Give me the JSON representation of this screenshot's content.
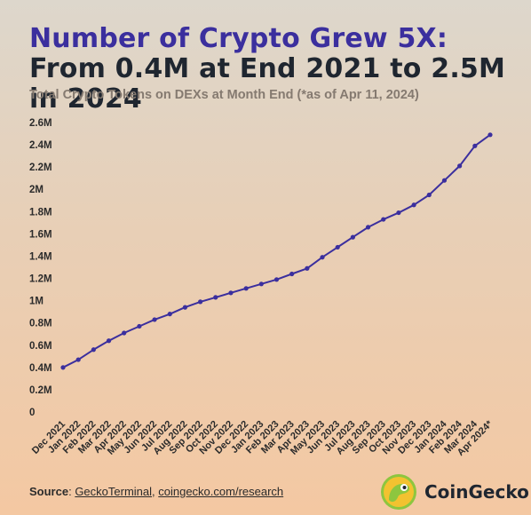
{
  "title_highlight": "Number of Crypto Grew 5X:",
  "title_rest": "From 0.4M at End 2021 to 2.5M in 2024",
  "subtitle": "Total Crypto Tokens on DEXs at Month End (*as of Apr 11, 2024)",
  "source": {
    "label": "Source",
    "link1": "GeckoTerminal",
    "separator": ", ",
    "link2": "coingecko.com/research"
  },
  "brand": {
    "name": "CoinGecko",
    "icon": "gecko-logo-icon"
  },
  "colors": {
    "line": "#3b2f9e",
    "title_highlight": "#3b2f9e",
    "text": "#1f2630",
    "subtitle": "#857a70"
  },
  "chart_data": {
    "type": "line",
    "title": "Number of Crypto Grew 5X: From 0.4M at End 2021 to 2.5M in 2024",
    "subtitle": "Total Crypto Tokens on DEXs at Month End (*as of Apr 11, 2024)",
    "xlabel": "",
    "ylabel": "",
    "ylim": [
      0,
      2.6
    ],
    "yticks": [
      0,
      0.2,
      0.4,
      0.6,
      0.8,
      1,
      1.2,
      1.4,
      1.6,
      1.8,
      2,
      2.2,
      2.4,
      2.6
    ],
    "ytick_labels": [
      "0",
      "0.2M",
      "0.4M",
      "0.6M",
      "0.8M",
      "1M",
      "1.2M",
      "1.4M",
      "1.6M",
      "1.8M",
      "2M",
      "2.2M",
      "2.4M",
      "2.6M"
    ],
    "grid": false,
    "categories": [
      "Dec 2021",
      "Jan 2022",
      "Feb 2022",
      "Mar 2022",
      "Apr 2022",
      "May 2022",
      "Jun 2022",
      "Jul 2022",
      "Aug 2022",
      "Sep 2022",
      "Oct 2022",
      "Nov 2022",
      "Dec 2022",
      "Jan 2023",
      "Feb 2023",
      "Mar 2023",
      "Apr 2023",
      "May 2023",
      "Jun 2023",
      "Jul 2023",
      "Aug 2023",
      "Sep 2023",
      "Oct 2023",
      "Nov 2023",
      "Dec 2023",
      "Jan 2024",
      "Feb 2024",
      "Mar 2024",
      "Apr 2024*"
    ],
    "values": [
      0.4,
      0.47,
      0.56,
      0.64,
      0.71,
      0.77,
      0.83,
      0.88,
      0.94,
      0.99,
      1.03,
      1.07,
      1.11,
      1.15,
      1.19,
      1.24,
      1.29,
      1.39,
      1.48,
      1.57,
      1.66,
      1.73,
      1.79,
      1.86,
      1.95,
      2.08,
      2.21,
      2.39,
      2.49
    ]
  }
}
